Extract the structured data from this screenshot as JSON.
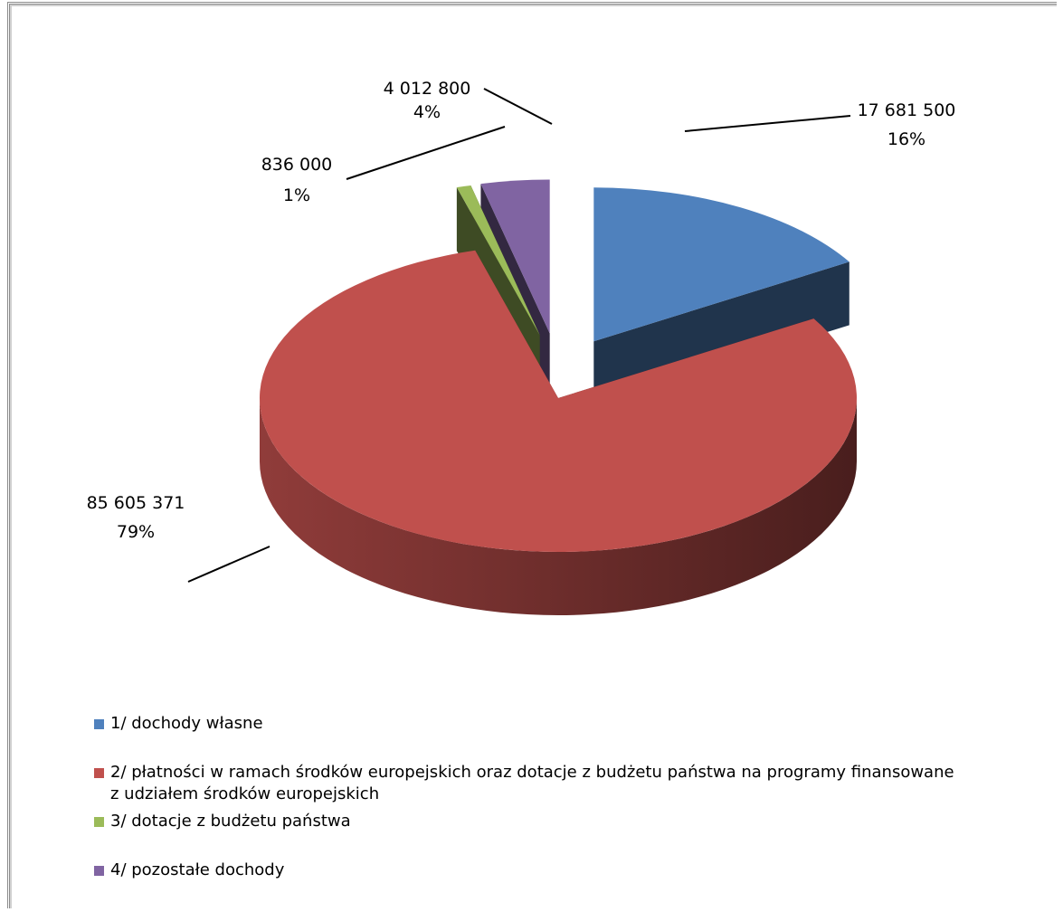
{
  "chart_data": {
    "type": "pie",
    "categories": [
      "1/ dochody własne",
      "2/ płatności w ramach środków europejskich oraz dotacje z budżetu  państwa na programy finansowane z udziałem środków europejskich",
      "3/ dotacje z budżetu państwa",
      "4/ pozostałe dochody"
    ],
    "values": [
      17681500,
      85605371,
      836000,
      4012800
    ],
    "value_labels": [
      "17 681 500",
      "85 605 371",
      "836 000",
      "4 012 800"
    ],
    "percents": [
      16,
      79,
      1,
      4
    ],
    "percent_labels": [
      "16%",
      "79%",
      "1%",
      "4%"
    ],
    "colors": [
      "#4f81bd",
      "#c0504d",
      "#9bbb59",
      "#8064a2"
    ],
    "legend": "bottom-left"
  }
}
